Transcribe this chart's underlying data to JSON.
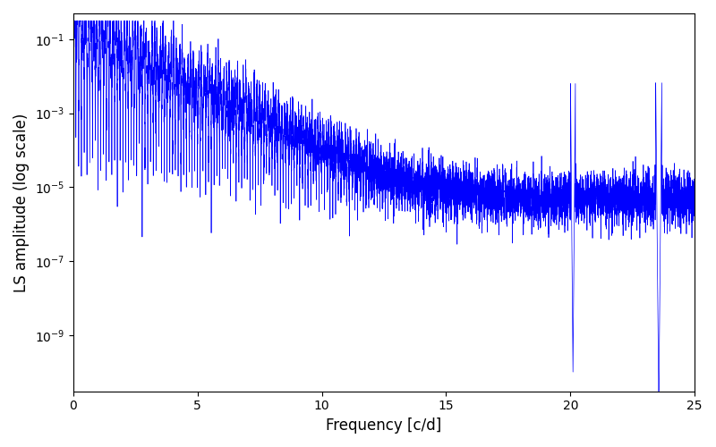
{
  "xlabel": "Frequency [c/d]",
  "ylabel": "LS amplitude (log scale)",
  "xlim": [
    0,
    25
  ],
  "ylim": [
    3e-11,
    0.5
  ],
  "line_color": "#0000ff",
  "line_width": 0.5,
  "bg_color": "#ffffff",
  "figsize": [
    8.0,
    5.0
  ],
  "dpi": 100,
  "xlabel_fontsize": 12,
  "ylabel_fontsize": 12,
  "xticks": [
    0,
    5,
    10,
    15,
    20,
    25
  ],
  "yticks_log": [
    -9,
    -7,
    -5,
    -3,
    -1
  ]
}
